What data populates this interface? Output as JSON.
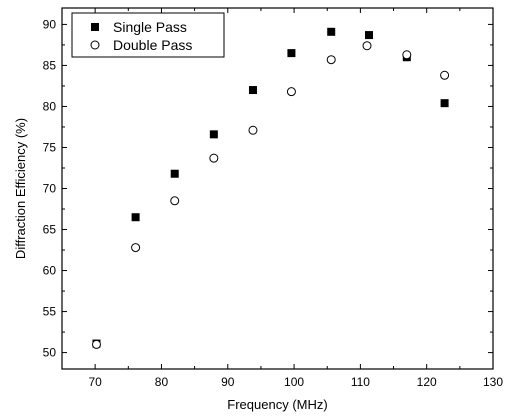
{
  "chart_data": {
    "type": "scatter",
    "title": "",
    "xlabel": "Frequency (MHz)",
    "ylabel": "Diffraction Efficiency (%)",
    "xlim": [
      65,
      130
    ],
    "ylim": [
      48,
      92
    ],
    "xticks": [
      70,
      80,
      90,
      100,
      110,
      120,
      130
    ],
    "yticks": [
      50,
      55,
      60,
      65,
      70,
      75,
      80,
      85,
      90
    ],
    "grid": false,
    "legend_position": "top-left",
    "series": [
      {
        "name": "Single Pass",
        "marker": "filled-square",
        "color": "#000000",
        "points": [
          [
            70.2,
            51.1
          ],
          [
            76.1,
            66.5
          ],
          [
            82.0,
            71.8
          ],
          [
            87.9,
            76.6
          ],
          [
            93.8,
            82.0
          ],
          [
            99.6,
            86.5
          ],
          [
            105.6,
            89.1
          ],
          [
            111.3,
            88.7
          ],
          [
            117.0,
            86.0
          ],
          [
            122.7,
            80.4
          ]
        ]
      },
      {
        "name": "Double Pass",
        "marker": "open-circle",
        "color": "#000000",
        "points": [
          [
            70.2,
            51.0
          ],
          [
            76.1,
            62.8
          ],
          [
            82.0,
            68.5
          ],
          [
            87.9,
            73.7
          ],
          [
            93.8,
            77.1
          ],
          [
            99.6,
            81.8
          ],
          [
            105.6,
            85.7
          ],
          [
            111.0,
            87.4
          ],
          [
            117.0,
            86.3
          ],
          [
            122.7,
            83.8
          ]
        ]
      }
    ]
  }
}
